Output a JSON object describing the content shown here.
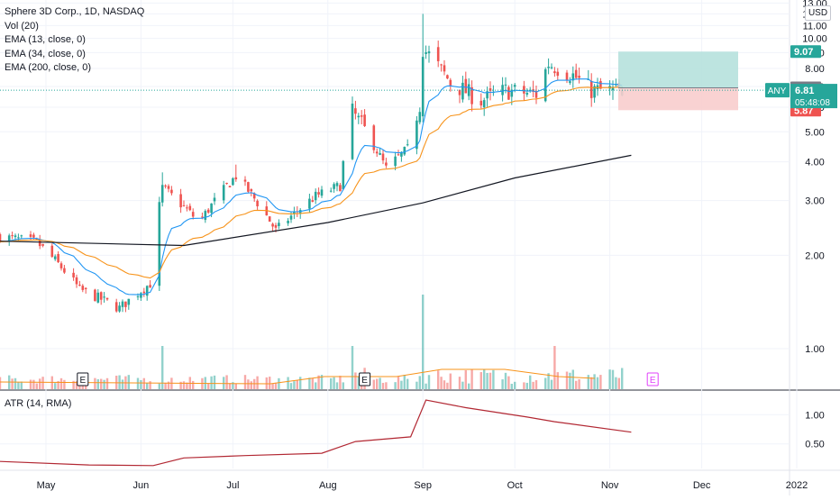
{
  "legend": {
    "title": "Sphere 3D Corp., 1D, NASDAQ",
    "vol": "Vol (20)",
    "ema13": "EMA (13, close, 0)",
    "ema34": "EMA (34, close, 0)",
    "ema200": "EMA (200, close, 0)"
  },
  "atr_label": "ATR (14, RMA)",
  "currency": "USD",
  "colors": {
    "up": "#26a69a",
    "down": "#ef5350",
    "ema13": "#2196f3",
    "ema34": "#f7931a",
    "ema200": "#131722",
    "atr": "#b22833",
    "vol_ma": "#f7931a",
    "target": "#b2dfdb",
    "stop": "#f8cdcd",
    "last_price": "#26a69a"
  },
  "chart_data": [
    {
      "type": "candlestick",
      "symbol": "ANY",
      "y_scale": "log",
      "ylim": [
        0.74,
        13.3
      ],
      "y_ticks": [
        "1.00",
        "2.00",
        "3.00",
        "4.00",
        "5.00",
        "6.00",
        "7.00",
        "8.00",
        "9.00",
        "10.00",
        "11.00",
        "12.00",
        "13.00"
      ],
      "x_ticks": [
        "May",
        "Jun",
        "Jul",
        "Aug",
        "Sep",
        "Oct",
        "Nov",
        "Dec",
        "2022"
      ],
      "earnings_markers": [
        {
          "date": "2021-05-13",
          "label": "E"
        },
        {
          "date": "2021-08-13",
          "label": "E"
        },
        {
          "date": "2021-11-15",
          "label": "E",
          "upcoming": true
        }
      ],
      "daily_ohlc_sample": [
        {
          "date": "2021-04-21",
          "open": 2.3,
          "high": 2.36,
          "low": 2.2,
          "close": 2.28
        },
        {
          "date": "2021-06-07",
          "open": 1.65,
          "high": 2.1,
          "low": 1.6,
          "close": 2.05
        },
        {
          "date": "2021-06-08",
          "open": 2.1,
          "high": 3.7,
          "low": 2.05,
          "close": 3.3
        },
        {
          "date": "2021-07-02",
          "open": 3.45,
          "high": 3.92,
          "low": 3.2,
          "close": 3.6
        },
        {
          "date": "2021-08-09",
          "open": 5.3,
          "high": 6.5,
          "low": 5.0,
          "close": 5.8
        },
        {
          "date": "2021-09-01",
          "open": 6.2,
          "high": 12.0,
          "low": 6.0,
          "close": 9.3
        },
        {
          "date": "2021-10-12",
          "open": 7.4,
          "high": 8.62,
          "low": 7.1,
          "close": 8.3
        },
        {
          "date": "2021-11-05",
          "open": 6.6,
          "high": 7.0,
          "low": 6.5,
          "close": 6.81
        }
      ],
      "last_price": {
        "label": "ANY",
        "price": "6.81",
        "countdown": "05:48:08"
      },
      "position": {
        "target": "9.07",
        "entry": "6.93",
        "stop": "5.87"
      },
      "ema": {
        "ema13_end": 6.6,
        "ema34_end": 6.45,
        "ema200": [
          {
            "date": "2021-04-16",
            "value": 2.22
          },
          {
            "date": "2021-06-15",
            "value": 2.15
          },
          {
            "date": "2021-08-01",
            "value": 2.55
          },
          {
            "date": "2021-09-01",
            "value": 2.95
          },
          {
            "date": "2021-10-01",
            "value": 3.55
          },
          {
            "date": "2021-11-08",
            "value": 4.2
          }
        ]
      }
    },
    {
      "type": "bar",
      "name": "Vol (20)",
      "note": "volume histogram, unlabeled values; spikes at Jun 8, Aug 9, Sep 1"
    },
    {
      "type": "line",
      "name": "ATR (14, RMA)",
      "y_ticks": [
        "0.50",
        "1.00"
      ],
      "ylim": [
        0.08,
        1.42
      ],
      "points": [
        {
          "date": "2021-04-16",
          "value": 0.2
        },
        {
          "date": "2021-05-15",
          "value": 0.14
        },
        {
          "date": "2021-06-05",
          "value": 0.13
        },
        {
          "date": "2021-06-15",
          "value": 0.26
        },
        {
          "date": "2021-07-05",
          "value": 0.3
        },
        {
          "date": "2021-07-30",
          "value": 0.34
        },
        {
          "date": "2021-08-10",
          "value": 0.54
        },
        {
          "date": "2021-08-28",
          "value": 0.62
        },
        {
          "date": "2021-09-02",
          "value": 1.25
        },
        {
          "date": "2021-09-15",
          "value": 1.12
        },
        {
          "date": "2021-10-05",
          "value": 0.96
        },
        {
          "date": "2021-10-14",
          "value": 0.88
        },
        {
          "date": "2021-11-08",
          "value": 0.7
        }
      ]
    }
  ]
}
